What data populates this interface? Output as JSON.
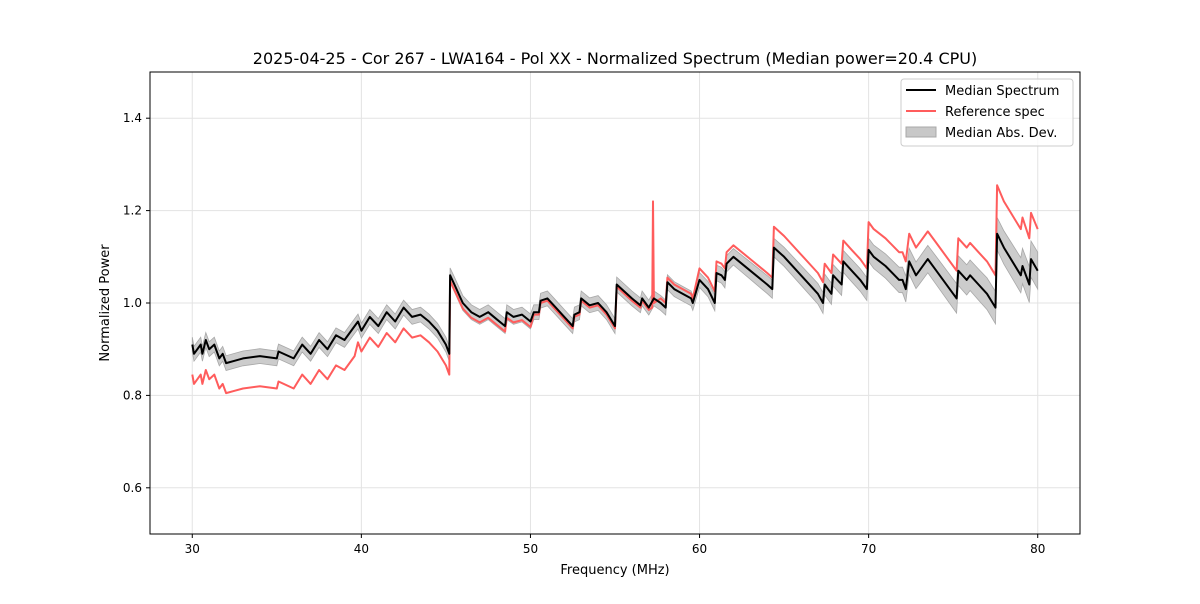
{
  "chart_data": {
    "type": "line",
    "title": "2025-04-25 - Cor 267 - LWA164 - Pol XX - Normalized Spectrum (Median power=20.4 CPU)",
    "xlabel": "Frequency (MHz)",
    "ylabel": "Normalized Power",
    "xlim": [
      27.5,
      82.5
    ],
    "ylim": [
      0.5,
      1.5
    ],
    "xticks": [
      30,
      40,
      50,
      60,
      70,
      80
    ],
    "yticks": [
      0.6,
      0.8,
      1.0,
      1.2,
      1.4
    ],
    "xtick_labels": [
      "30",
      "40",
      "50",
      "60",
      "70",
      "80"
    ],
    "ytick_labels": [
      "0.6",
      "0.8",
      "1.0",
      "1.2",
      "1.4"
    ],
    "grid": true,
    "legend_position": "top-right",
    "legend": [
      "Median Spectrum",
      "Reference spec",
      "Median Abs. Dev."
    ],
    "colors": {
      "median": "#000000",
      "reference": "#ff5c5c",
      "mad": "#bfbfbf"
    },
    "series": [
      {
        "name": "Median Spectrum",
        "x": [
          30.0,
          30.1,
          30.5,
          30.6,
          30.8,
          31.0,
          31.3,
          31.6,
          31.8,
          32.0,
          32.5,
          33.0,
          34.0,
          35.0,
          35.1,
          36.0,
          36.5,
          37.0,
          37.5,
          38.0,
          38.5,
          39.0,
          39.6,
          39.8,
          40.0,
          40.5,
          41.0,
          41.5,
          42.0,
          42.5,
          43.0,
          43.5,
          44.0,
          44.5,
          45.0,
          45.2,
          45.25,
          45.5,
          46.0,
          46.5,
          47.0,
          47.5,
          48.0,
          48.5,
          48.6,
          49.0,
          49.5,
          50.0,
          50.2,
          50.5,
          50.6,
          51.0,
          51.5,
          52.0,
          52.5,
          52.6,
          52.9,
          53.0,
          53.5,
          54.0,
          54.5,
          55.0,
          55.1,
          56.0,
          56.5,
          56.6,
          57.0,
          57.3,
          57.7,
          58.0,
          58.1,
          58.5,
          59.0,
          59.5,
          59.6,
          60.0,
          60.5,
          60.9,
          61.0,
          61.3,
          61.5,
          61.6,
          62.0,
          63.0,
          64.0,
          64.3,
          64.4,
          65.0,
          66.0,
          67.0,
          67.3,
          67.4,
          67.8,
          67.9,
          68.4,
          68.5,
          69.0,
          69.5,
          69.9,
          70.0,
          70.3,
          71.0,
          71.8,
          72.0,
          72.2,
          72.4,
          72.8,
          73.0,
          73.5,
          74.0,
          75.0,
          75.2,
          75.3,
          75.8,
          76.0,
          76.5,
          77.0,
          77.5,
          77.6,
          78.0,
          79.0,
          79.1,
          79.5,
          79.6,
          80.0
        ],
        "y": [
          0.91,
          0.89,
          0.91,
          0.89,
          0.92,
          0.9,
          0.91,
          0.88,
          0.89,
          0.87,
          0.875,
          0.88,
          0.885,
          0.88,
          0.895,
          0.88,
          0.91,
          0.89,
          0.92,
          0.9,
          0.93,
          0.92,
          0.95,
          0.96,
          0.94,
          0.97,
          0.95,
          0.98,
          0.96,
          0.99,
          0.97,
          0.975,
          0.96,
          0.94,
          0.91,
          0.89,
          1.06,
          1.04,
          1.0,
          0.98,
          0.97,
          0.98,
          0.965,
          0.95,
          0.98,
          0.97,
          0.975,
          0.96,
          0.98,
          0.98,
          1.005,
          1.01,
          0.99,
          0.97,
          0.95,
          0.975,
          0.98,
          1.01,
          0.995,
          1.0,
          0.98,
          0.95,
          1.04,
          1.01,
          0.995,
          1.01,
          0.99,
          1.01,
          1.0,
          0.99,
          1.045,
          1.03,
          1.02,
          1.01,
          1.0,
          1.05,
          1.03,
          1.0,
          1.065,
          1.06,
          1.05,
          1.085,
          1.1,
          1.07,
          1.04,
          1.03,
          1.12,
          1.1,
          1.06,
          1.02,
          1.0,
          1.04,
          1.02,
          1.06,
          1.04,
          1.09,
          1.07,
          1.05,
          1.03,
          1.115,
          1.1,
          1.08,
          1.05,
          1.05,
          1.03,
          1.09,
          1.06,
          1.07,
          1.095,
          1.07,
          1.02,
          1.01,
          1.07,
          1.05,
          1.06,
          1.04,
          1.02,
          0.99,
          1.15,
          1.12,
          1.06,
          1.08,
          1.04,
          1.095,
          1.07
        ]
      },
      {
        "name": "Reference spec",
        "x": [
          30.0,
          30.1,
          30.5,
          30.6,
          30.8,
          31.0,
          31.3,
          31.6,
          31.8,
          32.0,
          32.5,
          33.0,
          34.0,
          35.0,
          35.1,
          36.0,
          36.5,
          37.0,
          37.5,
          38.0,
          38.5,
          39.0,
          39.6,
          39.8,
          40.0,
          40.5,
          41.0,
          41.5,
          42.0,
          42.5,
          43.0,
          43.5,
          44.0,
          44.5,
          45.0,
          45.2,
          45.25,
          45.5,
          46.0,
          46.5,
          47.0,
          47.5,
          48.0,
          48.5,
          48.6,
          49.0,
          49.5,
          50.0,
          50.2,
          50.5,
          50.6,
          51.0,
          51.5,
          52.0,
          52.5,
          52.6,
          52.9,
          53.0,
          53.5,
          54.0,
          54.5,
          55.0,
          55.1,
          56.0,
          56.5,
          56.6,
          57.0,
          57.2,
          57.25,
          57.3,
          57.7,
          58.0,
          58.1,
          58.5,
          59.0,
          59.5,
          59.6,
          60.0,
          60.5,
          60.9,
          61.0,
          61.3,
          61.5,
          61.6,
          62.0,
          63.0,
          64.0,
          64.3,
          64.4,
          65.0,
          66.0,
          67.0,
          67.3,
          67.4,
          67.8,
          67.9,
          68.4,
          68.5,
          69.0,
          69.5,
          69.9,
          70.0,
          70.3,
          71.0,
          71.8,
          72.0,
          72.2,
          72.4,
          72.8,
          73.0,
          73.5,
          74.0,
          75.0,
          75.2,
          75.3,
          75.8,
          76.0,
          76.5,
          77.0,
          77.5,
          77.6,
          78.0,
          79.0,
          79.1,
          79.5,
          79.6,
          80.0
        ],
        "y": [
          0.845,
          0.825,
          0.845,
          0.825,
          0.855,
          0.835,
          0.845,
          0.815,
          0.825,
          0.805,
          0.81,
          0.815,
          0.82,
          0.815,
          0.83,
          0.815,
          0.845,
          0.825,
          0.855,
          0.835,
          0.865,
          0.855,
          0.885,
          0.915,
          0.895,
          0.925,
          0.905,
          0.935,
          0.915,
          0.945,
          0.925,
          0.93,
          0.915,
          0.895,
          0.865,
          0.845,
          1.048,
          1.028,
          0.988,
          0.968,
          0.958,
          0.968,
          0.953,
          0.938,
          0.968,
          0.958,
          0.963,
          0.948,
          0.975,
          0.975,
          1.0,
          1.005,
          0.985,
          0.965,
          0.945,
          0.97,
          0.975,
          1.005,
          0.99,
          0.995,
          0.975,
          0.945,
          1.035,
          1.005,
          0.99,
          1.005,
          0.985,
          0.99,
          1.22,
          1.0,
          1.01,
          1.0,
          1.055,
          1.04,
          1.03,
          1.02,
          1.01,
          1.075,
          1.055,
          1.025,
          1.09,
          1.085,
          1.075,
          1.11,
          1.125,
          1.095,
          1.065,
          1.055,
          1.165,
          1.145,
          1.105,
          1.065,
          1.045,
          1.085,
          1.065,
          1.105,
          1.085,
          1.135,
          1.115,
          1.095,
          1.075,
          1.175,
          1.16,
          1.14,
          1.11,
          1.11,
          1.09,
          1.15,
          1.12,
          1.13,
          1.155,
          1.13,
          1.08,
          1.07,
          1.14,
          1.12,
          1.13,
          1.11,
          1.09,
          1.06,
          1.255,
          1.22,
          1.16,
          1.185,
          1.14,
          1.195,
          1.16
        ]
      }
    ],
    "mad_band": {
      "name": "Median Abs. Dev.",
      "x": [
        30,
        45,
        60,
        70,
        77.5,
        80
      ],
      "half_width": [
        0.016,
        0.016,
        0.016,
        0.025,
        0.035,
        0.04
      ]
    }
  }
}
